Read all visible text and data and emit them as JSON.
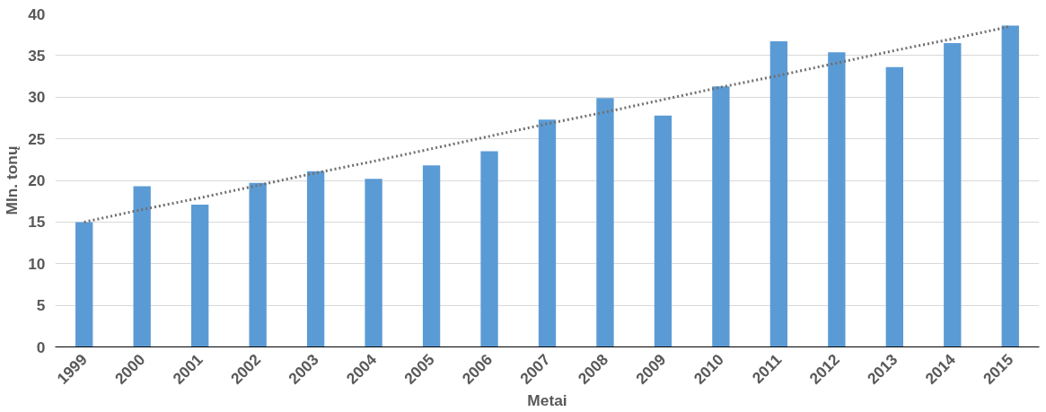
{
  "chart_data": {
    "type": "bar",
    "xlabel": "Metai",
    "ylabel": "Mln. tonų",
    "categories": [
      "1999",
      "2000",
      "2001",
      "2002",
      "2003",
      "2004",
      "2005",
      "2006",
      "2007",
      "2008",
      "2009",
      "2010",
      "2011",
      "2012",
      "2013",
      "2014",
      "2015"
    ],
    "series": [
      {
        "color": "#5b9bd5",
        "values": [
          15.0,
          19.3,
          17.1,
          19.7,
          21.1,
          20.2,
          21.8,
          23.5,
          27.3,
          29.9,
          27.8,
          31.3,
          36.7,
          35.4,
          33.6,
          36.5,
          38.6
        ]
      },
      {
        "type": "line",
        "color": "#707070",
        "values": [
          15.0,
          16.5,
          17.9,
          19.4,
          20.9,
          22.3,
          23.8,
          25.3,
          26.8,
          28.2,
          29.7,
          31.2,
          32.6,
          34.1,
          35.6,
          37.0,
          38.5
        ],
        "line_style": "dotted",
        "marker": "none"
      }
    ],
    "ylim": [
      0,
      40
    ],
    "yticks": [
      0,
      5,
      10,
      15,
      20,
      25,
      30,
      35,
      40
    ],
    "grid": "y"
  }
}
